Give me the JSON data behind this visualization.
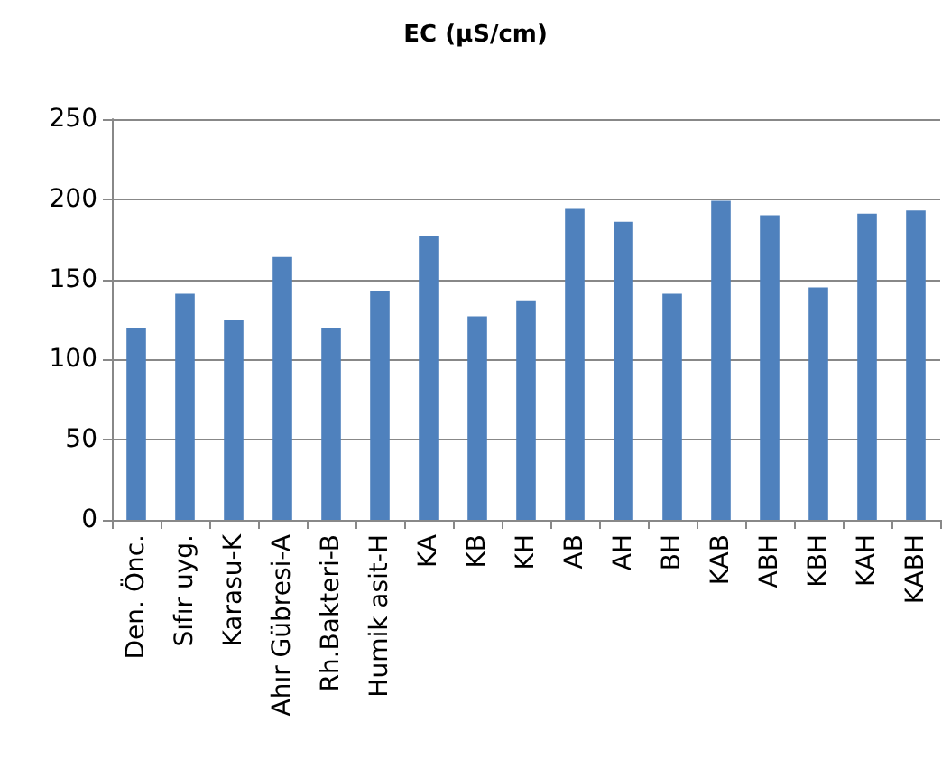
{
  "chart_data": {
    "type": "bar",
    "title": "EC (µS/cm)",
    "categories": [
      "Den. Önc.",
      "Sıfır uyg.",
      "Karasu-K",
      "Ahır Gübresi-A",
      "Rh.Bakteri-B",
      "Humik asit-H",
      "KA",
      "KB",
      "KH",
      "AB",
      "AH",
      "BH",
      "KAB",
      "ABH",
      "KBH",
      "KAH",
      "KABH"
    ],
    "values": [
      120,
      141,
      125,
      164,
      120,
      143,
      177,
      127,
      137,
      194,
      186,
      141,
      199,
      190,
      145,
      191,
      193
    ],
    "color": "#4f81bd",
    "ylim": [
      0,
      250
    ],
    "yticks": [
      0,
      50,
      100,
      150,
      200,
      250
    ],
    "grid": "y"
  }
}
